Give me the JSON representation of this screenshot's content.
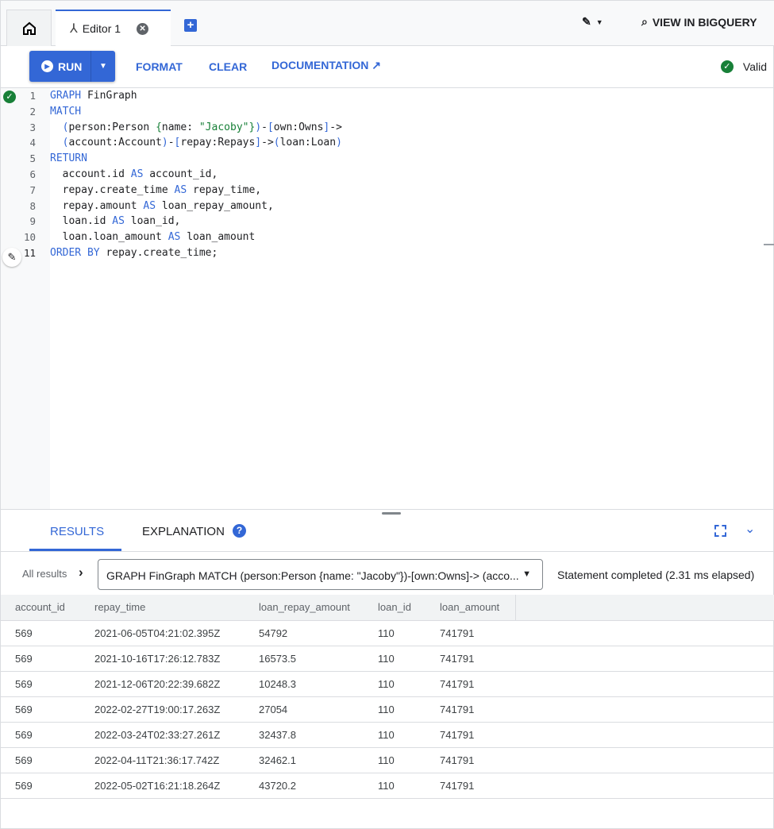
{
  "tabs": {
    "home_icon": "home-icon",
    "editor_label": "Editor 1"
  },
  "header": {
    "view_in_bigquery": "VIEW IN BIGQUERY"
  },
  "toolbar": {
    "run": "RUN",
    "format": "FORMAT",
    "clear": "CLEAR",
    "documentation": "DOCUMENTATION",
    "status": "Valid"
  },
  "editor": {
    "line_numbers": [
      "1",
      "2",
      "3",
      "4",
      "5",
      "6",
      "7",
      "8",
      "9",
      "10",
      "11"
    ]
  },
  "results": {
    "tabs": [
      "RESULTS",
      "EXPLANATION"
    ],
    "breadcrumb": "All results",
    "statement": "GRAPH FinGraph MATCH (person:Person {name: \"Jacoby\"})-[own:Owns]-> (acco...",
    "status": "Statement completed (2.31 ms elapsed)",
    "columns": [
      "account_id",
      "repay_time",
      "loan_repay_amount",
      "loan_id",
      "loan_amount"
    ],
    "rows": [
      [
        "569",
        "2021-06-05T04:21:02.395Z",
        "54792",
        "110",
        "741791"
      ],
      [
        "569",
        "2021-10-16T17:26:12.783Z",
        "16573.5",
        "110",
        "741791"
      ],
      [
        "569",
        "2021-12-06T20:22:39.682Z",
        "10248.3",
        "110",
        "741791"
      ],
      [
        "569",
        "2022-02-27T19:00:17.263Z",
        "27054",
        "110",
        "741791"
      ],
      [
        "569",
        "2022-03-24T02:33:27.261Z",
        "32437.8",
        "110",
        "741791"
      ],
      [
        "569",
        "2022-04-11T21:36:17.742Z",
        "32462.1",
        "110",
        "741791"
      ],
      [
        "569",
        "2022-05-02T16:21:18.264Z",
        "43720.2",
        "110",
        "741791"
      ]
    ]
  },
  "colors": {
    "accent": "#3367d6",
    "valid": "#188038"
  }
}
